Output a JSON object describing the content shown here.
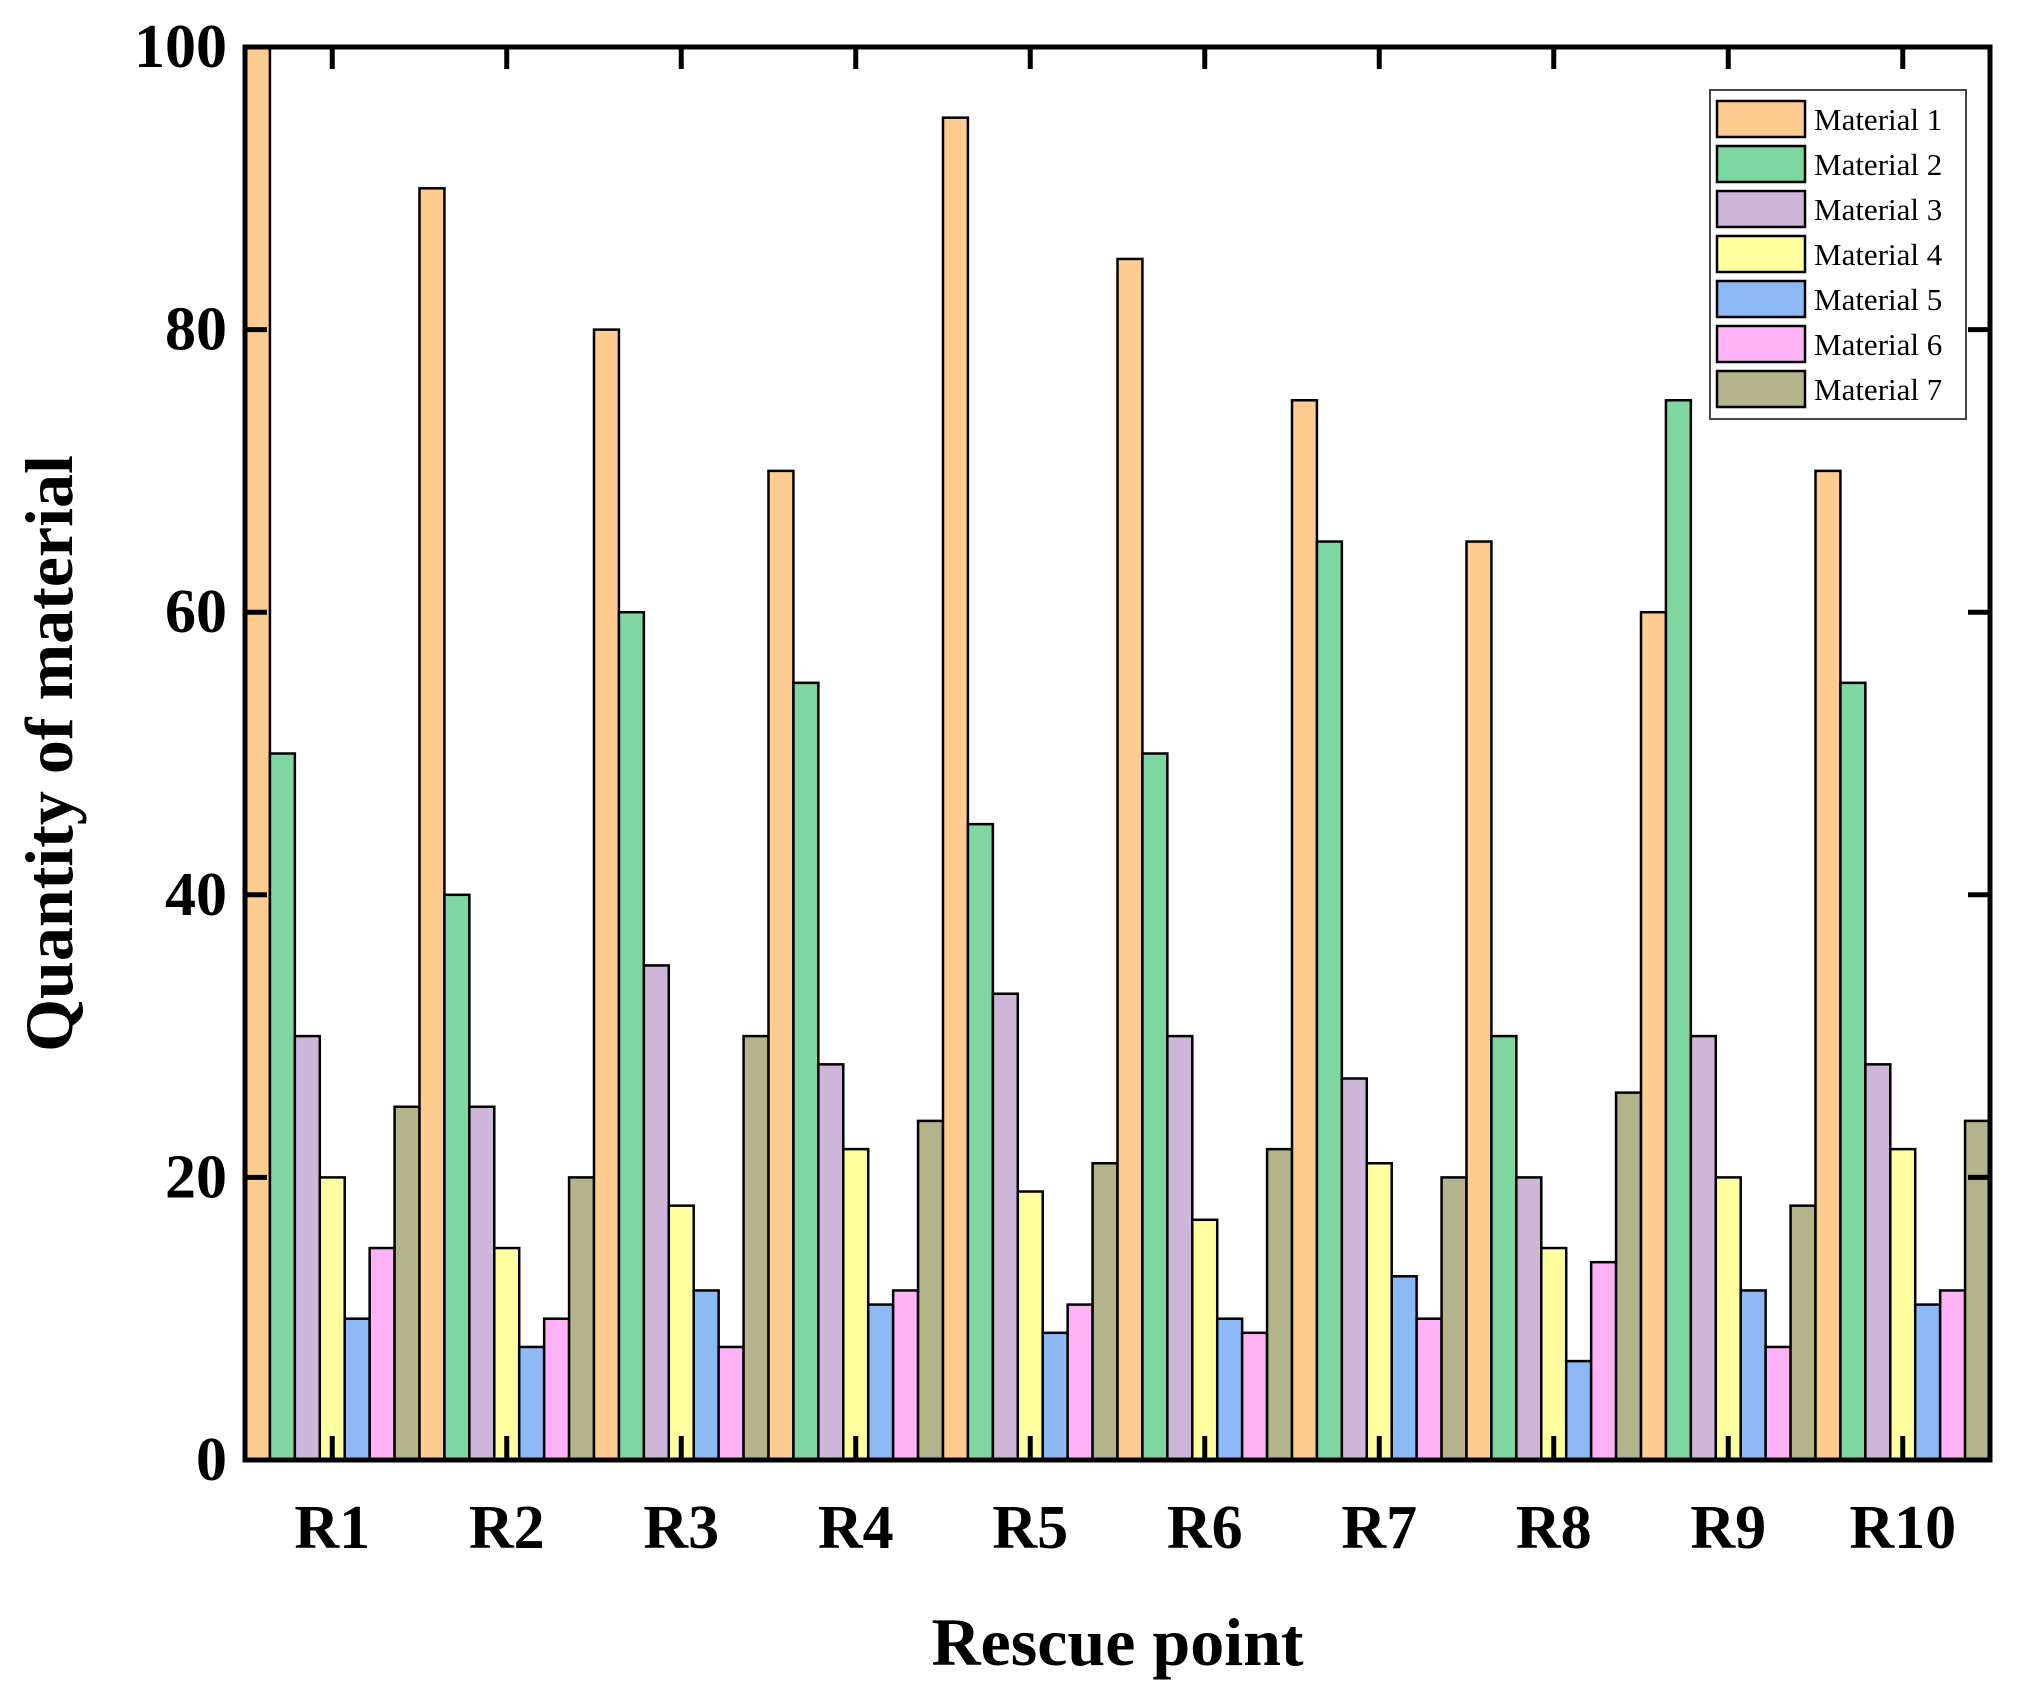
{
  "chart_data": {
    "type": "bar",
    "title": "",
    "xlabel": "Rescue point",
    "ylabel": "Quantity of material",
    "ylim": [
      0,
      100
    ],
    "yticks": [
      0,
      20,
      40,
      60,
      80,
      100
    ],
    "legend_position": "top-right",
    "categories": [
      "R1",
      "R2",
      "R3",
      "R4",
      "R5",
      "R6",
      "R7",
      "R8",
      "R9",
      "R10"
    ],
    "series": [
      {
        "name": "Material 1",
        "color": "#FFCC8F",
        "values": [
          100,
          90,
          80,
          70,
          95,
          85,
          75,
          65,
          60,
          70
        ]
      },
      {
        "name": "Material 2",
        "color": "#7ED6A0",
        "values": [
          50,
          40,
          60,
          55,
          45,
          50,
          65,
          30,
          75,
          55
        ]
      },
      {
        "name": "Material 3",
        "color": "#CDB6DA",
        "values": [
          30,
          25,
          35,
          28,
          33,
          30,
          27,
          20,
          30,
          28
        ]
      },
      {
        "name": "Material 4",
        "color": "#FFFFA0",
        "values": [
          20,
          15,
          18,
          22,
          19,
          17,
          21,
          15,
          20,
          22
        ]
      },
      {
        "name": "Material 5",
        "color": "#8DB9F6",
        "values": [
          10,
          8,
          12,
          11,
          9,
          10,
          13,
          7,
          12,
          11
        ]
      },
      {
        "name": "Material 6",
        "color": "#FFB3F6",
        "values": [
          15,
          10,
          8,
          12,
          11,
          9,
          10,
          14,
          8,
          12
        ]
      },
      {
        "name": "Material 7",
        "color": "#B3B38C",
        "values": [
          25,
          20,
          30,
          24,
          21,
          22,
          20,
          26,
          18,
          24
        ]
      }
    ]
  }
}
